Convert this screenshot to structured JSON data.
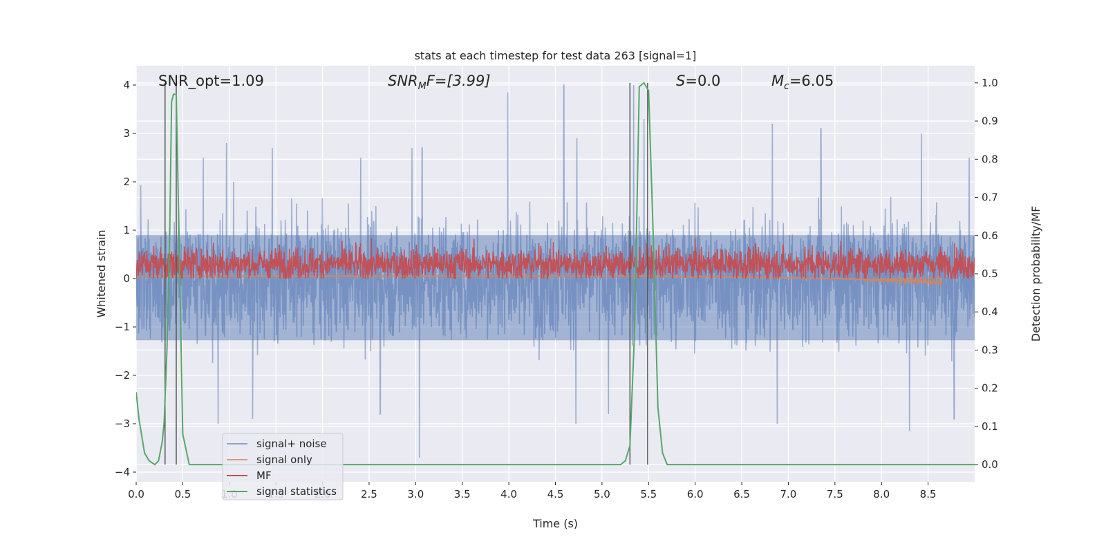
{
  "chart_data": {
    "type": "line",
    "title": "stats at each timestep for test data 263 [signal=1]",
    "xlabel": "Time (s)",
    "ylabel": "Whitened strain",
    "y2label": "Detection probability/MF",
    "xlim": [
      0.0,
      9.0
    ],
    "ylim": [
      -4.2,
      4.4
    ],
    "y2lim": [
      -0.045,
      1.045
    ],
    "xticks": [
      "0.0",
      "0.5",
      "1.0",
      "1.5",
      "2.0",
      "2.5",
      "3.0",
      "3.5",
      "4.0",
      "4.5",
      "5.0",
      "5.5",
      "6.0",
      "6.5",
      "7.0",
      "7.5",
      "8.0",
      "8.5"
    ],
    "yticks": [
      "4",
      "3",
      "2",
      "1",
      "0",
      "−1",
      "−2",
      "−3",
      "−4"
    ],
    "y2ticks": [
      "1.0",
      "0.9",
      "0.8",
      "0.7",
      "0.6",
      "0.5",
      "0.4",
      "0.3",
      "0.2",
      "0.1",
      "0.0"
    ],
    "grid": true,
    "legend_placement": "lower-left",
    "colors": {
      "background": "#eaeaf2",
      "grid": "#ffffff",
      "signal_noise": "#4c72b0",
      "signal_only": "#dd8452",
      "mf": "#c44e52",
      "signal_statistics": "#55a868",
      "vlines": "#555555"
    },
    "annotations": {
      "snr_opt": "SNR_opt=1.09",
      "snr_mf_main": "SNR",
      "snr_mf_sub": "M",
      "snr_mf_rest": "F=[3.99]",
      "s_main": "S",
      "s_rest": "=0.0",
      "mc_main": "M",
      "mc_sub": "c",
      "mc_rest": "=6.05"
    },
    "series": [
      {
        "name": "signal+ noise",
        "description_kind": "noise band",
        "envelope_typ": [
          -1.5,
          1.8
        ],
        "extreme_values": [
          {
            "x": 0.72,
            "y": 2.5
          },
          {
            "x": 0.97,
            "y": 2.8
          },
          {
            "x": 1.46,
            "y": 2.7
          },
          {
            "x": 2.41,
            "y": 2.5
          },
          {
            "x": 2.96,
            "y": 2.7
          },
          {
            "x": 3.07,
            "y": 2.7
          },
          {
            "x": 3.99,
            "y": 3.85
          },
          {
            "x": 4.59,
            "y": 4.0
          },
          {
            "x": 4.73,
            "y": 2.9
          },
          {
            "x": 5.34,
            "y": 4.0
          },
          {
            "x": 5.45,
            "y": 3.3
          },
          {
            "x": 6.83,
            "y": 3.2
          },
          {
            "x": 7.35,
            "y": 3.1
          },
          {
            "x": 8.43,
            "y": 3.0
          },
          {
            "x": 8.94,
            "y": 2.5
          },
          {
            "x": 0.88,
            "y": -3.0
          },
          {
            "x": 1.25,
            "y": -2.9
          },
          {
            "x": 2.62,
            "y": -2.8
          },
          {
            "x": 3.04,
            "y": -3.7
          },
          {
            "x": 4.72,
            "y": -3.0
          },
          {
            "x": 5.07,
            "y": -2.8
          },
          {
            "x": 6.88,
            "y": -3.0
          },
          {
            "x": 8.3,
            "y": -3.15
          },
          {
            "x": 8.78,
            "y": -2.9
          }
        ]
      },
      {
        "name": "signal only",
        "x": [
          0.0,
          5.5,
          6.5,
          7.5,
          8.0,
          8.4,
          8.65
        ],
        "y": [
          0.05,
          0.05,
          0.03,
          0.0,
          -0.02,
          -0.05,
          -0.1
        ]
      },
      {
        "name": "MF",
        "baseline": 0.3,
        "spread": [
          0.0,
          0.95
        ]
      },
      {
        "name": "signal statistics",
        "x": [
          0.0,
          0.03,
          0.09,
          0.14,
          0.2,
          0.24,
          0.28,
          0.3,
          0.33,
          0.36,
          0.38,
          0.4,
          0.43,
          0.46,
          0.5,
          0.57,
          5.2,
          5.25,
          5.3,
          5.35,
          5.4,
          5.45,
          5.5,
          5.55,
          5.6,
          5.65,
          5.7,
          6.0,
          9.0
        ],
        "y": [
          0.19,
          0.12,
          0.03,
          0.01,
          0.0,
          0.01,
          0.06,
          0.11,
          0.3,
          0.6,
          0.95,
          0.97,
          0.97,
          0.6,
          0.08,
          0.0,
          0.0,
          0.01,
          0.05,
          0.35,
          0.99,
          1.0,
          0.98,
          0.6,
          0.15,
          0.03,
          0.0,
          0.0,
          0.0
        ]
      }
    ],
    "vertical_lines_x": [
      0.31,
      0.43,
      5.3,
      5.49
    ]
  }
}
